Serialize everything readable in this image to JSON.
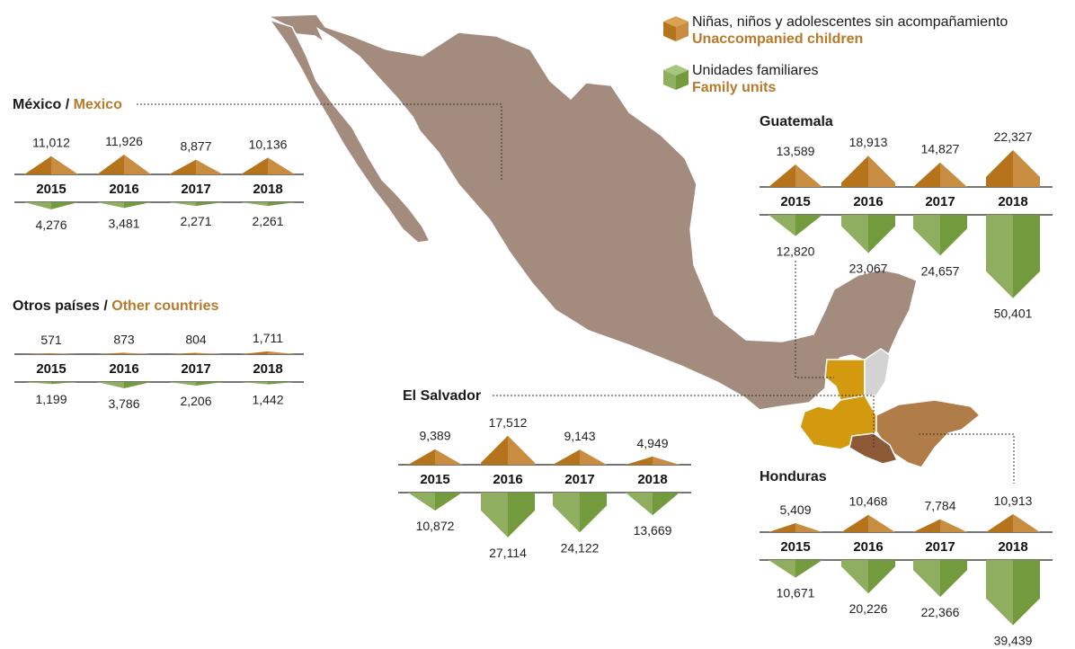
{
  "colors": {
    "map": "#a38b7e",
    "map_border": "#ffffff",
    "guatemala": "#d49a0f",
    "honduras": "#b07c47",
    "el_salvador": "#8c5a36",
    "belize": "#d3d3d3",
    "orange_left": "#b5741c",
    "orange_right": "#c88d40",
    "green_left": "#8fae5f",
    "green_right": "#739a3c",
    "english_title": "#b7792a"
  },
  "legend": {
    "unaccompanied_es": "Niñas, niños y adolescentes sin acompañamiento",
    "unaccompanied_en": "Unaccompanied children",
    "family_es": "Unidades familiares",
    "family_en": "Family units"
  },
  "panels": {
    "mexico": {
      "title_es": "México",
      "separator": " / ",
      "title_en": "Mexico"
    },
    "other": {
      "title_es": "Otros países",
      "separator": " / ",
      "title_en": "Other countries"
    },
    "guatemala": {
      "title": "Guatemala"
    },
    "el_salvador": {
      "title": "El Salvador"
    },
    "honduras": {
      "title": "Honduras"
    }
  },
  "chart_data": [
    {
      "type": "bar",
      "title": "México / Mexico",
      "categories": [
        "2015",
        "2016",
        "2017",
        "2018"
      ],
      "series": [
        {
          "name": "Unaccompanied children",
          "values": [
            11012,
            11926,
            8877,
            10136
          ],
          "labels": [
            "11,012",
            "11,926",
            "8,877",
            "10,136"
          ]
        },
        {
          "name": "Family units",
          "values": [
            4276,
            3481,
            2271,
            2261
          ],
          "labels": [
            "4,276",
            "3,481",
            "2,271",
            "2,261"
          ]
        }
      ]
    },
    {
      "type": "bar",
      "title": "Otros países / Other countries",
      "categories": [
        "2015",
        "2016",
        "2017",
        "2018"
      ],
      "series": [
        {
          "name": "Unaccompanied children",
          "values": [
            571,
            873,
            804,
            1711
          ],
          "labels": [
            "571",
            "873",
            "804",
            "1,711"
          ]
        },
        {
          "name": "Family units",
          "values": [
            1199,
            3786,
            2206,
            1442
          ],
          "labels": [
            "1,199",
            "3,786",
            "2,206",
            "1,442"
          ]
        }
      ]
    },
    {
      "type": "bar",
      "title": "Guatemala",
      "categories": [
        "2015",
        "2016",
        "2017",
        "2018"
      ],
      "series": [
        {
          "name": "Unaccompanied children",
          "values": [
            13589,
            18913,
            14827,
            22327
          ],
          "labels": [
            "13,589",
            "18,913",
            "14,827",
            "22,327"
          ]
        },
        {
          "name": "Family units",
          "values": [
            12820,
            23067,
            24657,
            50401
          ],
          "labels": [
            "12,820",
            "23,067",
            "24,657",
            "50,401"
          ]
        }
      ]
    },
    {
      "type": "bar",
      "title": "El Salvador",
      "categories": [
        "2015",
        "2016",
        "2017",
        "2018"
      ],
      "series": [
        {
          "name": "Unaccompanied children",
          "values": [
            9389,
            17512,
            9143,
            4949
          ],
          "labels": [
            "9,389",
            "17,512",
            "9,143",
            "4,949"
          ]
        },
        {
          "name": "Family units",
          "values": [
            10872,
            27114,
            24122,
            13669
          ],
          "labels": [
            "10,872",
            "27,114",
            "24,122",
            "13,669"
          ]
        }
      ]
    },
    {
      "type": "bar",
      "title": "Honduras",
      "categories": [
        "2015",
        "2016",
        "2017",
        "2018"
      ],
      "series": [
        {
          "name": "Unaccompanied children",
          "values": [
            5409,
            10468,
            7784,
            10913
          ],
          "labels": [
            "5,409",
            "10,468",
            "7,784",
            "10,913"
          ]
        },
        {
          "name": "Family units",
          "values": [
            10671,
            20226,
            22366,
            39439
          ],
          "labels": [
            "10,671",
            "20,226",
            "22,366",
            "39,439"
          ]
        }
      ]
    }
  ]
}
